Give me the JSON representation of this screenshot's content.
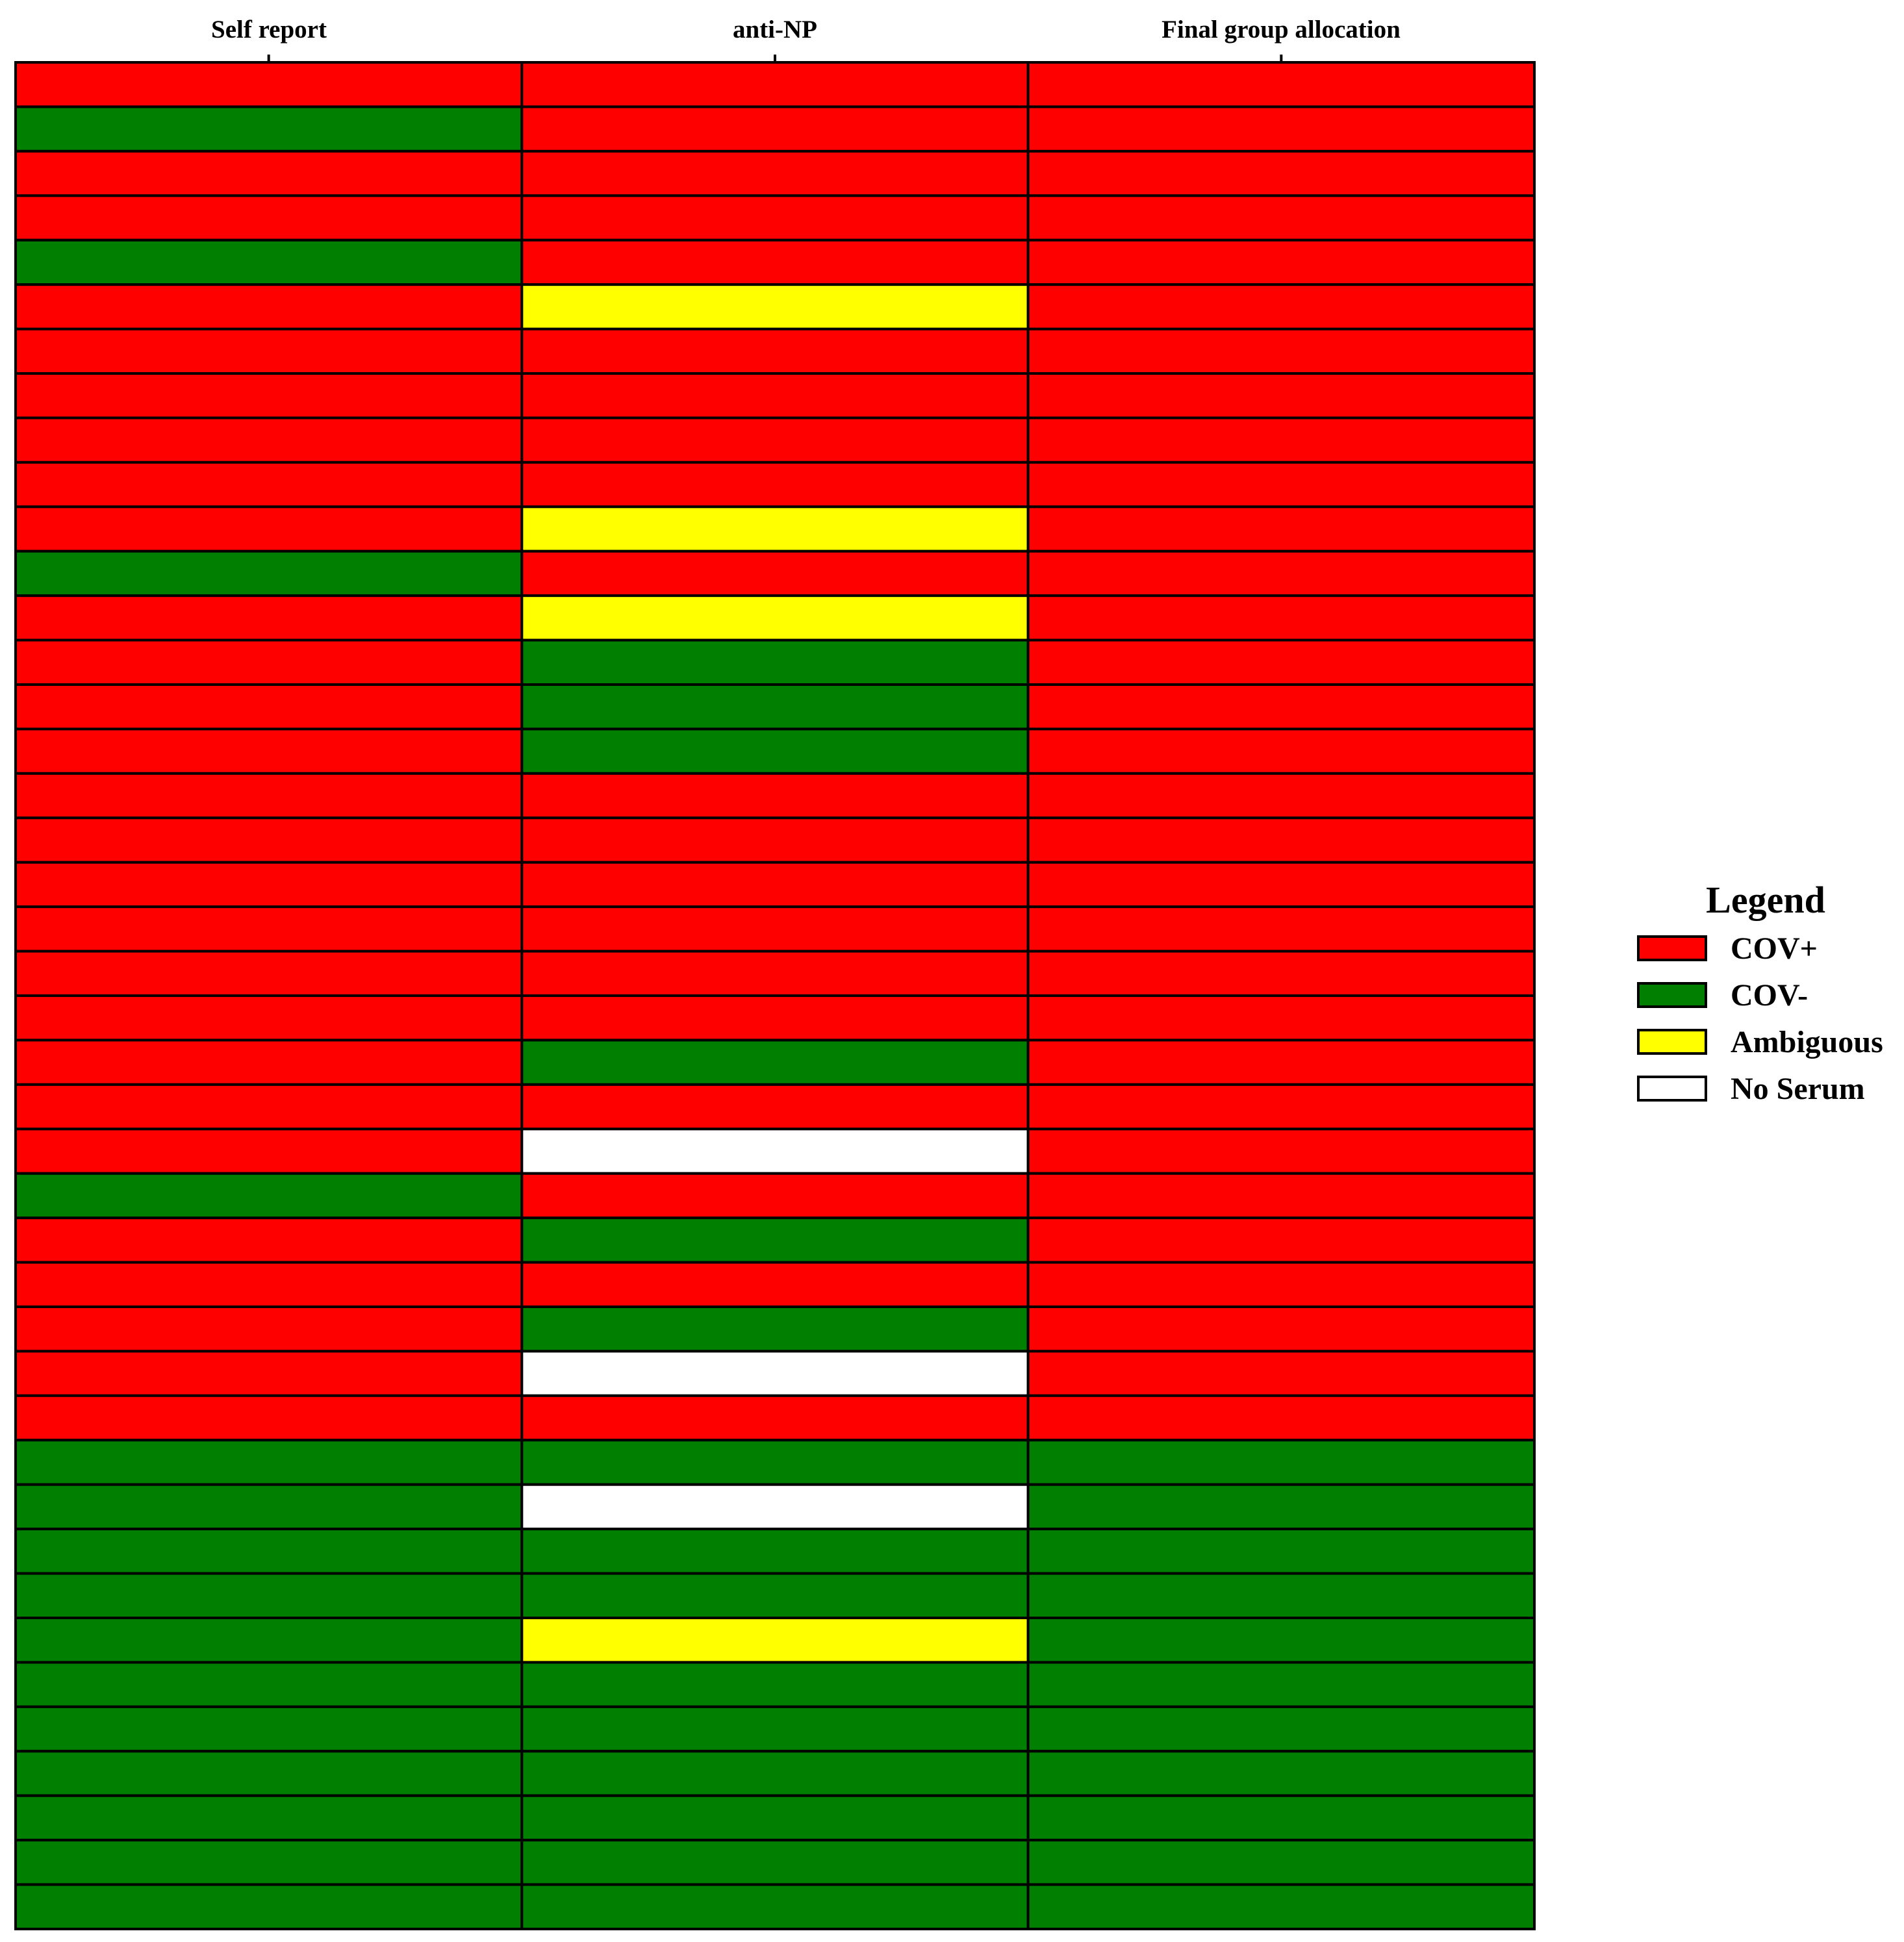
{
  "chart_data": {
    "type": "heatmap",
    "columns": [
      "Self report",
      "anti-NP",
      "Final group allocation"
    ],
    "legend": {
      "title": "Legend",
      "position": "right",
      "items": [
        {
          "key": "pos",
          "label": "COV+",
          "color": "#ff0000"
        },
        {
          "key": "neg",
          "label": "COV-",
          "color": "#007f00"
        },
        {
          "key": "amb",
          "label": "Ambiguous",
          "color": "#ffff00"
        },
        {
          "key": "none",
          "label": "No Serum",
          "color": "#ffffff"
        }
      ]
    },
    "rows": [
      [
        "pos",
        "pos",
        "pos"
      ],
      [
        "neg",
        "pos",
        "pos"
      ],
      [
        "pos",
        "pos",
        "pos"
      ],
      [
        "pos",
        "pos",
        "pos"
      ],
      [
        "neg",
        "pos",
        "pos"
      ],
      [
        "pos",
        "amb",
        "pos"
      ],
      [
        "pos",
        "pos",
        "pos"
      ],
      [
        "pos",
        "pos",
        "pos"
      ],
      [
        "pos",
        "pos",
        "pos"
      ],
      [
        "pos",
        "pos",
        "pos"
      ],
      [
        "pos",
        "amb",
        "pos"
      ],
      [
        "neg",
        "pos",
        "pos"
      ],
      [
        "pos",
        "amb",
        "pos"
      ],
      [
        "pos",
        "neg",
        "pos"
      ],
      [
        "pos",
        "neg",
        "pos"
      ],
      [
        "pos",
        "neg",
        "pos"
      ],
      [
        "pos",
        "pos",
        "pos"
      ],
      [
        "pos",
        "pos",
        "pos"
      ],
      [
        "pos",
        "pos",
        "pos"
      ],
      [
        "pos",
        "pos",
        "pos"
      ],
      [
        "pos",
        "pos",
        "pos"
      ],
      [
        "pos",
        "pos",
        "pos"
      ],
      [
        "pos",
        "neg",
        "pos"
      ],
      [
        "pos",
        "pos",
        "pos"
      ],
      [
        "pos",
        "none",
        "pos"
      ],
      [
        "neg",
        "pos",
        "pos"
      ],
      [
        "pos",
        "neg",
        "pos"
      ],
      [
        "pos",
        "pos",
        "pos"
      ],
      [
        "pos",
        "neg",
        "pos"
      ],
      [
        "pos",
        "none",
        "pos"
      ],
      [
        "pos",
        "pos",
        "pos"
      ],
      [
        "neg",
        "neg",
        "neg"
      ],
      [
        "neg",
        "none",
        "neg"
      ],
      [
        "neg",
        "neg",
        "neg"
      ],
      [
        "neg",
        "neg",
        "neg"
      ],
      [
        "neg",
        "amb",
        "neg"
      ],
      [
        "neg",
        "neg",
        "neg"
      ],
      [
        "neg",
        "neg",
        "neg"
      ],
      [
        "neg",
        "neg",
        "neg"
      ],
      [
        "neg",
        "neg",
        "neg"
      ],
      [
        "neg",
        "neg",
        "neg"
      ],
      [
        "neg",
        "neg",
        "neg"
      ]
    ]
  }
}
